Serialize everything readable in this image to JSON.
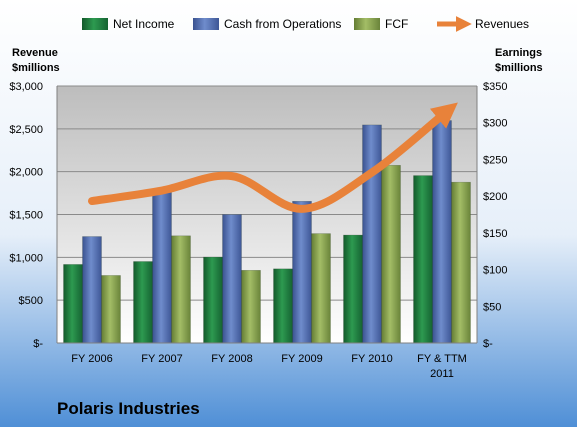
{
  "chart_data": {
    "type": "bar",
    "categories": [
      "FY 2006",
      "FY 2007",
      "FY 2008",
      "FY 2009",
      "FY 2010",
      "FY & TTM 2011"
    ],
    "series": [
      {
        "name": "Net Income",
        "axis": "right",
        "values": [
          107,
          111,
          117,
          101,
          147,
          228
        ],
        "color": "#1f7a3e"
      },
      {
        "name": "Cash from Operations",
        "axis": "right",
        "values": [
          145,
          209,
          175,
          193,
          297,
          303
        ],
        "color": "#4f6aa8"
      },
      {
        "name": "FCF",
        "axis": "right",
        "values": [
          92,
          146,
          99,
          149,
          242,
          219
        ],
        "color": "#7f9a48"
      },
      {
        "name": "Revenues",
        "axis": "left",
        "type": "line",
        "values": [
          1657,
          1780,
          1948,
          1566,
          1991,
          2656
        ],
        "color": "#e8823a"
      }
    ],
    "left_axis": {
      "label_line1": "Revenue",
      "label_line2": "$millions",
      "ylim": [
        0,
        3000
      ],
      "ticks": [
        0,
        500,
        1000,
        1500,
        2000,
        2500,
        3000
      ],
      "tick_labels": [
        "$-",
        "$500",
        "$1,000",
        "$1,500",
        "$2,000",
        "$2,500",
        "$3,000"
      ]
    },
    "right_axis": {
      "label_line1": "Earnings",
      "label_line2": "$millions",
      "ylim": [
        0,
        350
      ],
      "ticks": [
        0,
        50,
        100,
        150,
        200,
        250,
        300,
        350
      ],
      "tick_labels": [
        "$-",
        "$50",
        "$100",
        "$150",
        "$200",
        "$250",
        "$300",
        "$350"
      ]
    },
    "x_tick_labels": [
      [
        "FY 2006"
      ],
      [
        "FY 2007"
      ],
      [
        "FY 2008"
      ],
      [
        "FY 2009"
      ],
      [
        "FY 2010"
      ],
      [
        "FY & TTM",
        "2011"
      ]
    ],
    "legend_placement": "top",
    "grid": true,
    "company": "Polaris Industries"
  }
}
